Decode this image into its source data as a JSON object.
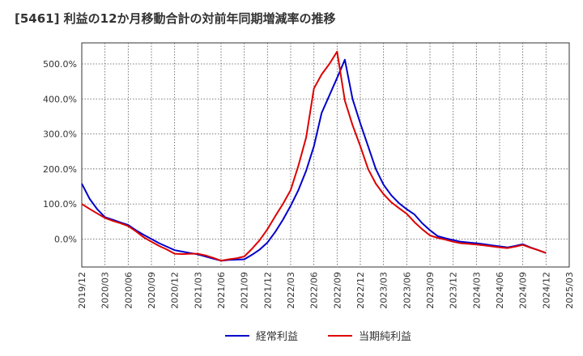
{
  "chart_data": {
    "type": "line",
    "title": "[5461]  利益の12か月移動合計の対前年同期増減率の推移",
    "xlabel": "",
    "ylabel": "",
    "ylim": [
      -80,
      560
    ],
    "y_ticks": [
      0,
      100,
      200,
      300,
      400,
      500
    ],
    "y_tick_labels": [
      "0.0%",
      "100.0%",
      "200.0%",
      "300.0%",
      "400.0%",
      "500.0%"
    ],
    "x_tick_labels": [
      "2019/12",
      "2020/03",
      "2020/06",
      "2020/09",
      "2020/12",
      "2021/03",
      "2021/06",
      "2021/09",
      "2021/12",
      "2022/03",
      "2022/06",
      "2022/09",
      "2022/12",
      "2023/03",
      "2023/06",
      "2023/09",
      "2023/12",
      "2024/03",
      "2024/06",
      "2024/09",
      "2024/12",
      "2025/03"
    ],
    "x_months": [
      "2019/12",
      "2020/01",
      "2020/02",
      "2020/03",
      "2020/04",
      "2020/05",
      "2020/06",
      "2020/07",
      "2020/08",
      "2020/09",
      "2020/10",
      "2020/11",
      "2020/12",
      "2021/01",
      "2021/02",
      "2021/03",
      "2021/04",
      "2021/05",
      "2021/06",
      "2021/07",
      "2021/08",
      "2021/09",
      "2021/10",
      "2021/11",
      "2021/12",
      "2022/01",
      "2022/02",
      "2022/03",
      "2022/04",
      "2022/05",
      "2022/06",
      "2022/07",
      "2022/08",
      "2022/09",
      "2022/10",
      "2022/11",
      "2022/12",
      "2023/01",
      "2023/02",
      "2023/03",
      "2023/04",
      "2023/05",
      "2023/06",
      "2023/07",
      "2023/08",
      "2023/09",
      "2023/10",
      "2023/11",
      "2023/12",
      "2024/01",
      "2024/02",
      "2024/03",
      "2024/04",
      "2024/05",
      "2024/06",
      "2024/07",
      "2024/08",
      "2024/09",
      "2024/10",
      "2024/11",
      "2024/12"
    ],
    "series": [
      {
        "name": "経常利益",
        "color": "#0000cc",
        "values": [
          158,
          115,
          85,
          62,
          55,
          47,
          40,
          25,
          12,
          0,
          -12,
          -22,
          -32,
          -36,
          -40,
          -44,
          -50,
          -56,
          -62,
          -60,
          -59,
          -58,
          -45,
          -30,
          -10,
          20,
          55,
          95,
          140,
          195,
          265,
          360,
          410,
          460,
          512,
          400,
          330,
          265,
          200,
          155,
          125,
          102,
          85,
          70,
          45,
          25,
          8,
          2,
          -3,
          -8,
          -10,
          -12,
          -15,
          -18,
          -21,
          -24,
          -20,
          -15,
          -24,
          -32,
          -40
        ]
      },
      {
        "name": "当期純利益",
        "color": "#dd0000",
        "values": [
          100,
          86,
          73,
          60,
          52,
          45,
          37,
          22,
          5,
          -8,
          -20,
          -30,
          -42,
          -43,
          -42,
          -42,
          -47,
          -54,
          -62,
          -58,
          -55,
          -50,
          -28,
          -3,
          28,
          65,
          100,
          140,
          210,
          290,
          430,
          470,
          500,
          535,
          395,
          325,
          265,
          200,
          158,
          128,
          105,
          88,
          72,
          48,
          28,
          10,
          3,
          -2,
          -8,
          -12,
          -14,
          -16,
          -18,
          -21,
          -24,
          -26,
          -22,
          -17,
          -25,
          -32,
          -40
        ]
      }
    ],
    "legend": [
      "経常利益",
      "当期純利益"
    ],
    "legend_position": "bottom-center",
    "grid": true
  }
}
